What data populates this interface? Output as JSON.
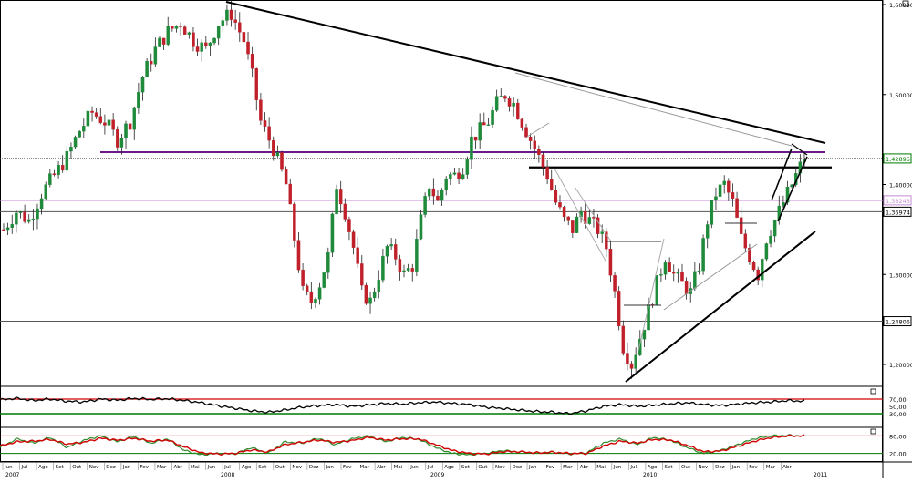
{
  "chart_data": [
    {
      "panel": "price",
      "type": "candlestick",
      "period": "weekly",
      "y_axis_ticks": [
        "1,60000",
        "1,50000",
        "1,40000",
        "1,30000",
        "1,20000"
      ],
      "y_axis_tick_values": [
        1.6,
        1.5,
        1.4,
        1.3,
        1.2
      ],
      "price_labels": [
        {
          "text": "1,42895",
          "value": 1.42895,
          "color": "#007a00"
        },
        {
          "text": "1,38243",
          "value": 1.38243,
          "color": "#c48ad6"
        },
        {
          "text": "1,36974",
          "value": 1.36974,
          "color": "#000000"
        },
        {
          "text": "1,24806",
          "value": 1.24806,
          "color": "#000000"
        }
      ],
      "ylim": [
        1.16,
        1.61
      ],
      "x_months": [
        "Jun",
        "Jul",
        "Ago",
        "Set",
        "Out",
        "Nov",
        "Dez",
        "Jan",
        "Fev",
        "Mar",
        "Abr",
        "Mai",
        "Jun",
        "Jul",
        "Ago",
        "Set",
        "Out",
        "Nov",
        "Dez",
        "Jan",
        "Fev",
        "Mar",
        "Abr",
        "Mai",
        "Jun",
        "Jul",
        "Ago",
        "Set",
        "Out",
        "Nov",
        "Dez",
        "Jan",
        "Fev",
        "Mar",
        "Abr",
        "Mai",
        "Jun",
        "Jul",
        "Ago",
        "Set",
        "Out",
        "Nov",
        "Dez",
        "Jan",
        "Fev",
        "Mar",
        "Abr"
      ],
      "x_years": [
        "2007",
        "2008",
        "2009",
        "2010",
        "2011"
      ],
      "close_series_keypoints": [
        [
          0,
          1.35
        ],
        [
          3,
          1.37
        ],
        [
          6,
          1.36
        ],
        [
          9,
          1.39
        ],
        [
          12,
          1.41
        ],
        [
          15,
          1.43
        ],
        [
          18,
          1.46
        ],
        [
          21,
          1.48
        ],
        [
          24,
          1.47
        ],
        [
          27,
          1.45
        ],
        [
          30,
          1.47
        ],
        [
          33,
          1.52
        ],
        [
          36,
          1.55
        ],
        [
          39,
          1.57
        ],
        [
          42,
          1.58
        ],
        [
          45,
          1.56
        ],
        [
          48,
          1.55
        ],
        [
          51,
          1.58
        ],
        [
          54,
          1.59
        ],
        [
          57,
          1.56
        ],
        [
          59,
          1.52
        ],
        [
          61,
          1.47
        ],
        [
          64,
          1.44
        ],
        [
          67,
          1.4
        ],
        [
          69,
          1.34
        ],
        [
          71,
          1.28
        ],
        [
          73,
          1.27
        ],
        [
          75,
          1.29
        ],
        [
          77,
          1.32
        ],
        [
          79,
          1.4
        ],
        [
          81,
          1.37
        ],
        [
          83,
          1.33
        ],
        [
          85,
          1.28
        ],
        [
          87,
          1.27
        ],
        [
          89,
          1.3
        ],
        [
          91,
          1.33
        ],
        [
          93,
          1.32
        ],
        [
          95,
          1.3
        ],
        [
          97,
          1.31
        ],
        [
          99,
          1.36
        ],
        [
          101,
          1.4
        ],
        [
          103,
          1.38
        ],
        [
          105,
          1.41
        ],
        [
          107,
          1.41
        ],
        [
          109,
          1.42
        ],
        [
          111,
          1.45
        ],
        [
          113,
          1.46
        ],
        [
          115,
          1.47
        ],
        [
          117,
          1.49
        ],
        [
          119,
          1.5
        ],
        [
          121,
          1.49
        ],
        [
          123,
          1.47
        ],
        [
          125,
          1.45
        ],
        [
          127,
          1.43
        ],
        [
          129,
          1.41
        ],
        [
          131,
          1.38
        ],
        [
          133,
          1.36
        ],
        [
          135,
          1.35
        ],
        [
          137,
          1.37
        ],
        [
          139,
          1.36
        ],
        [
          141,
          1.35
        ],
        [
          143,
          1.33
        ],
        [
          145,
          1.28
        ],
        [
          147,
          1.22
        ],
        [
          149,
          1.2
        ],
        [
          151,
          1.23
        ],
        [
          153,
          1.26
        ],
        [
          155,
          1.29
        ],
        [
          157,
          1.32
        ],
        [
          159,
          1.3
        ],
        [
          161,
          1.29
        ],
        [
          163,
          1.28
        ],
        [
          165,
          1.31
        ],
        [
          167,
          1.36
        ],
        [
          169,
          1.39
        ],
        [
          171,
          1.4
        ],
        [
          173,
          1.38
        ],
        [
          175,
          1.34
        ],
        [
          177,
          1.32
        ],
        [
          179,
          1.3
        ],
        [
          181,
          1.34
        ],
        [
          183,
          1.36
        ],
        [
          185,
          1.38
        ],
        [
          187,
          1.4
        ],
        [
          189,
          1.42
        ],
        [
          190,
          1.43
        ]
      ]
    },
    {
      "panel": "rsi",
      "type": "line",
      "ylim": [
        0,
        100
      ],
      "levels": [
        70,
        30
      ],
      "y_axis_ticks": [
        "70,00",
        "50,00",
        "30,00"
      ],
      "series": [
        {
          "color": "#000000",
          "values": [
            68,
            72,
            66,
            70,
            64,
            62,
            70,
            67,
            72,
            69,
            71,
            66,
            60,
            52,
            45,
            38,
            34,
            40,
            48,
            52,
            55,
            50,
            54,
            58,
            56,
            60,
            62,
            58,
            55,
            48,
            44,
            40,
            36,
            34,
            30,
            38,
            50,
            55,
            50,
            53,
            57,
            60,
            55,
            52,
            56,
            60,
            62,
            66,
            64
          ]
        }
      ]
    },
    {
      "panel": "stochastic",
      "type": "line",
      "ylim": [
        0,
        100
      ],
      "levels": [
        80,
        20
      ],
      "y_axis_ticks": [
        "80,00",
        "20,00"
      ],
      "series": [
        {
          "color": "#2e8b2e",
          "values": [
            40,
            70,
            55,
            75,
            40,
            65,
            80,
            60,
            78,
            55,
            70,
            30,
            15,
            20,
            18,
            40,
            20,
            60,
            55,
            72,
            50,
            70,
            80,
            60,
            75,
            68,
            40,
            20,
            15,
            20,
            30,
            25,
            22,
            25,
            18,
            22,
            55,
            70,
            50,
            75,
            65,
            40,
            20,
            30,
            50,
            70,
            80,
            82,
            80
          ]
        },
        {
          "color": "#d00000",
          "values": [
            45,
            60,
            62,
            68,
            52,
            58,
            72,
            65,
            72,
            62,
            66,
            42,
            22,
            18,
            20,
            32,
            25,
            50,
            58,
            66,
            58,
            64,
            75,
            66,
            70,
            70,
            50,
            30,
            20,
            18,
            26,
            26,
            22,
            24,
            20,
            20,
            45,
            62,
            55,
            68,
            66,
            48,
            26,
            28,
            44,
            62,
            74,
            80,
            80
          ]
        }
      ]
    }
  ]
}
